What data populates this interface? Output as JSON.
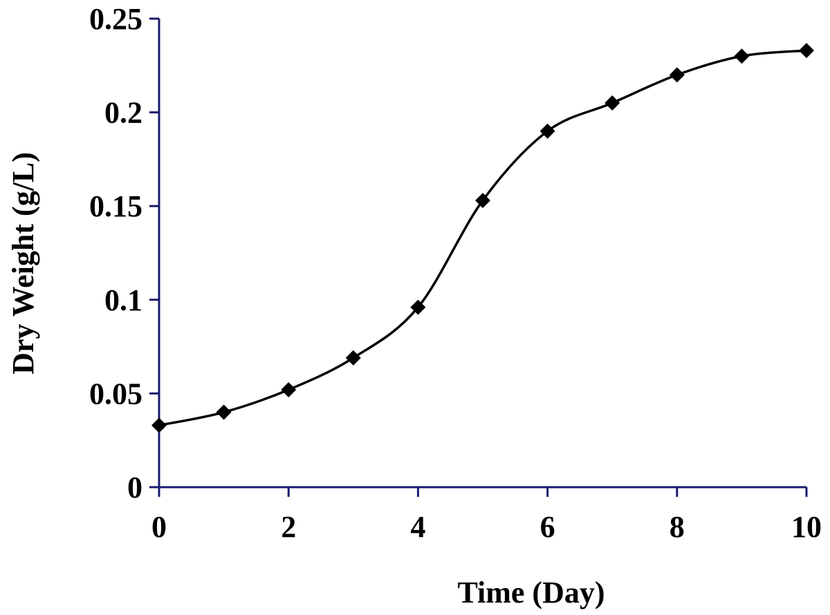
{
  "chart_data": {
    "type": "line",
    "title": "",
    "xlabel": "Time (Day)",
    "ylabel": "Dry Weight (g/L)",
    "xlim": [
      0,
      10
    ],
    "ylim": [
      0,
      0.25
    ],
    "x_ticks": [
      0,
      2,
      4,
      6,
      8,
      10
    ],
    "x_tick_labels": [
      "0",
      "2",
      "4",
      "6",
      "8",
      "10"
    ],
    "y_ticks": [
      0,
      0.05,
      0.1,
      0.15,
      0.2,
      0.25
    ],
    "y_tick_labels": [
      "0",
      "0.05",
      "0.1",
      "0.15",
      "0.2",
      "0.25"
    ],
    "grid": false,
    "legend": "none",
    "series": [
      {
        "x": [
          0,
          1,
          2,
          3,
          4,
          5,
          6,
          7,
          8,
          9,
          10
        ],
        "values": [
          0.033,
          0.04,
          0.052,
          0.069,
          0.096,
          0.153,
          0.19,
          0.205,
          0.22,
          0.23,
          0.233
        ],
        "marker": "diamond",
        "line_style": "smooth"
      }
    ],
    "colors": {
      "axis": "#1a1a6e",
      "line": "#000000",
      "marker": "#000000"
    }
  }
}
